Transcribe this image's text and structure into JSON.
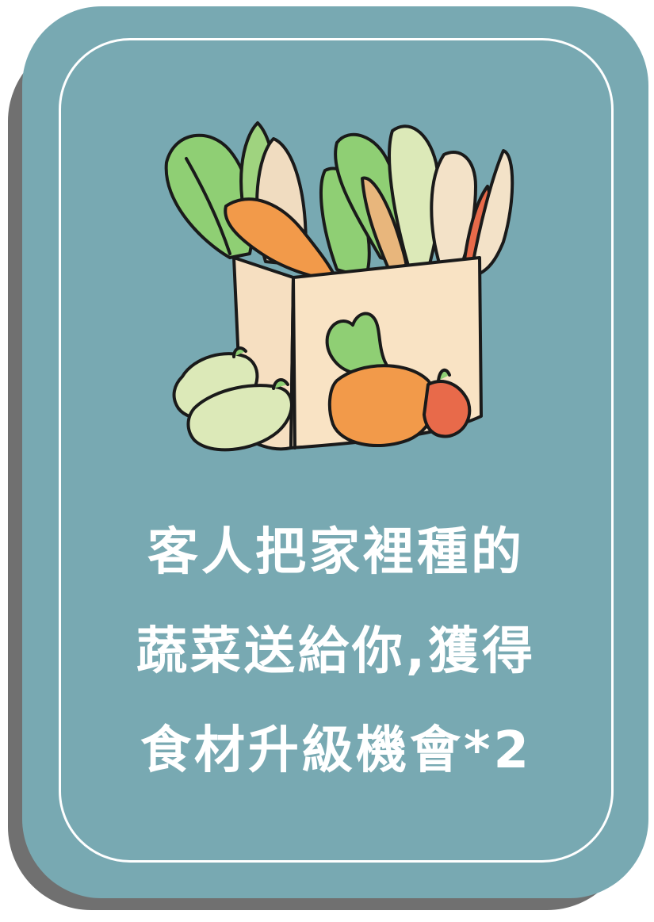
{
  "card": {
    "colors": {
      "background": "#78a9b2",
      "shadow": "#707070",
      "border": "#ffffff",
      "text": "#ffffff"
    },
    "illustration": "vegetable-bag-icon",
    "text_lines": [
      "客人把家裡種的",
      "蔬菜送給你,獲得",
      "食材升級機會*2"
    ]
  }
}
